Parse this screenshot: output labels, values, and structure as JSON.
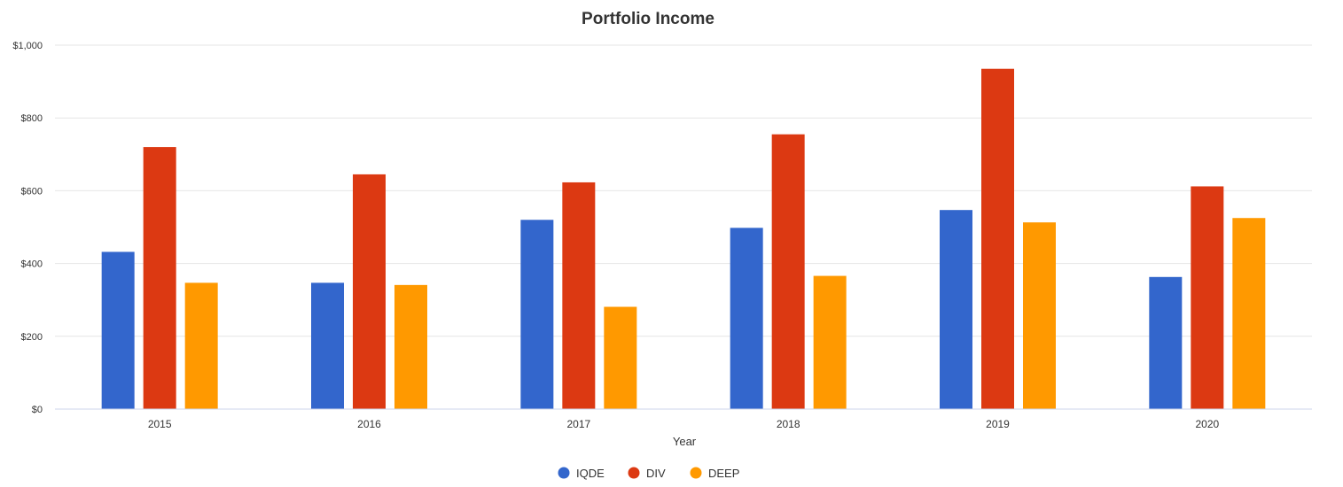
{
  "chart_data": {
    "type": "bar",
    "title": "Portfolio Income",
    "xlabel": "Year",
    "ylabel": "",
    "categories": [
      "2015",
      "2016",
      "2017",
      "2018",
      "2019",
      "2020"
    ],
    "ylim": [
      0,
      1000
    ],
    "yticks": [
      0,
      200,
      400,
      600,
      800,
      1000
    ],
    "ytick_labels": [
      "$0",
      "$200",
      "$400",
      "$600",
      "$800",
      "$1,000"
    ],
    "grid": true,
    "legend_position": "bottom-center",
    "series": [
      {
        "name": "IQDE",
        "color": "#3366cc",
        "values": [
          432,
          347,
          520,
          498,
          547,
          363
        ]
      },
      {
        "name": "DIV",
        "color": "#dc3912",
        "values": [
          720,
          645,
          623,
          755,
          935,
          612
        ]
      },
      {
        "name": "DEEP",
        "color": "#ff9900",
        "values": [
          347,
          341,
          281,
          366,
          513,
          525
        ]
      }
    ]
  }
}
